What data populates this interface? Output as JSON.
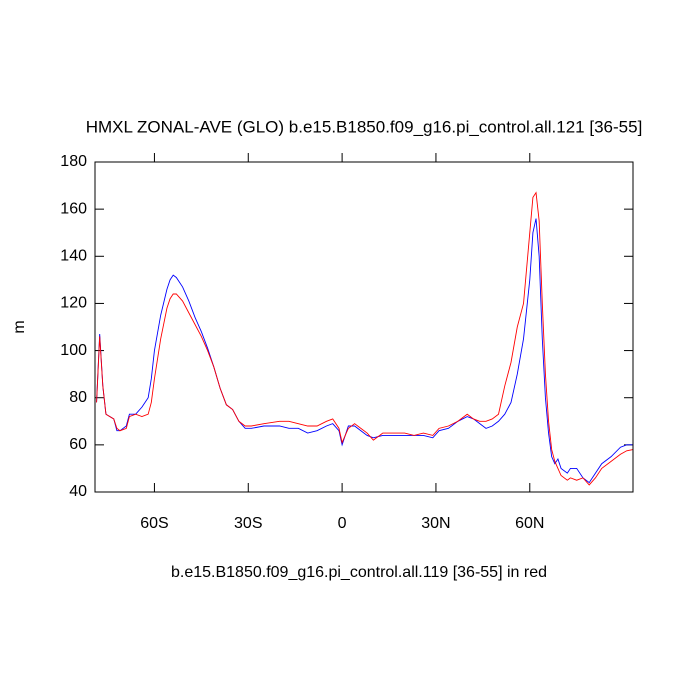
{
  "chart_data": {
    "type": "line",
    "title": "HMXL ZONAL-AVE (GLO) b.e15.B1850.f09_g16.pi_control.all.121 [36-55]",
    "x_label": "b.e15.B1850.f09_g16.pi_control.all.119 [36-55] in red",
    "y_label": "m",
    "xlim": [
      -79,
      93
    ],
    "ylim": [
      40,
      180
    ],
    "xticks": [
      {
        "value": -60,
        "label": "60S"
      },
      {
        "value": -30,
        "label": "30S"
      },
      0,
      {
        "value": 30,
        "label": "30N"
      },
      {
        "value": 60,
        "label": "60N"
      }
    ],
    "yticks": [
      40,
      60,
      80,
      100,
      120,
      140,
      160,
      180
    ],
    "x": [
      -78.5,
      -77.5,
      -76.5,
      -75.5,
      -73,
      -72,
      -71,
      -69,
      -68,
      -66,
      -64,
      -62,
      -61,
      -60,
      -58,
      -56,
      -55,
      -54,
      -53,
      -51,
      -49,
      -47,
      -45,
      -43,
      -41,
      -39,
      -37,
      -35,
      -33,
      -31,
      -29,
      -25,
      -20,
      -17,
      -14,
      -11,
      -8,
      -5,
      -3,
      -1,
      0,
      1,
      2,
      4,
      6,
      8,
      10,
      13,
      16,
      20,
      23,
      26,
      29,
      31,
      34,
      37,
      40,
      42,
      44,
      46,
      48,
      50,
      52,
      54,
      56,
      58,
      60,
      61,
      62,
      63,
      64,
      65,
      66,
      67,
      68,
      69,
      70,
      72,
      73,
      75,
      77,
      79,
      81,
      83,
      86,
      89,
      91,
      93
    ],
    "series": [
      {
        "name": "b.e15.B1850.f09_g16.pi_control.all.121 [36-55]",
        "color": "#0000ff",
        "values": [
          78,
          107,
          85,
          73,
          71,
          66,
          66,
          68,
          73,
          73,
          76,
          80,
          88,
          100,
          115,
          126,
          130,
          132,
          131,
          127,
          121,
          114,
          108,
          101,
          93,
          84,
          77,
          75,
          70,
          67,
          67,
          68,
          68,
          67,
          67,
          65,
          66,
          68,
          69,
          66,
          60,
          64,
          68,
          68,
          66,
          64,
          63,
          64,
          64,
          64,
          64,
          64,
          63,
          66,
          67,
          70,
          72,
          71,
          69,
          67,
          68,
          70,
          73,
          78,
          90,
          105,
          130,
          150,
          156,
          140,
          105,
          80,
          65,
          55,
          52,
          54,
          50,
          48,
          50,
          50,
          46,
          44,
          48,
          52,
          55,
          59,
          60,
          60
        ]
      },
      {
        "name": "b.e15.B1850.f09_g16.pi_control.all.119 [36-55]",
        "color": "#ff0000",
        "values": [
          78,
          106,
          85,
          73,
          71,
          67,
          66,
          67,
          72,
          73,
          72,
          73,
          78,
          88,
          105,
          118,
          122,
          124,
          124,
          121,
          116,
          111,
          106,
          100,
          93,
          84,
          77,
          75,
          70,
          68,
          68,
          69,
          70,
          70,
          69,
          68,
          68,
          70,
          71,
          67,
          61,
          64,
          67,
          69,
          67,
          65,
          62,
          65,
          65,
          65,
          64,
          65,
          64,
          67,
          68,
          70,
          73,
          71,
          70,
          70,
          71,
          73,
          85,
          95,
          110,
          120,
          150,
          165,
          167,
          155,
          120,
          90,
          70,
          58,
          53,
          50,
          47,
          45,
          46,
          45,
          46,
          43,
          46,
          50,
          53,
          56,
          57.5,
          58
        ]
      }
    ]
  }
}
